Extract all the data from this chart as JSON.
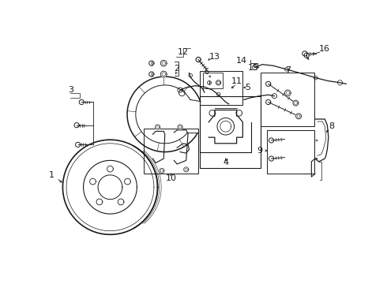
{
  "bg_color": "#ffffff",
  "line_color": "#1a1a1a",
  "fig_width": 4.9,
  "fig_height": 3.6,
  "dpi": 100,
  "label_fontsize": 8.0,
  "small_fontsize": 7.0
}
